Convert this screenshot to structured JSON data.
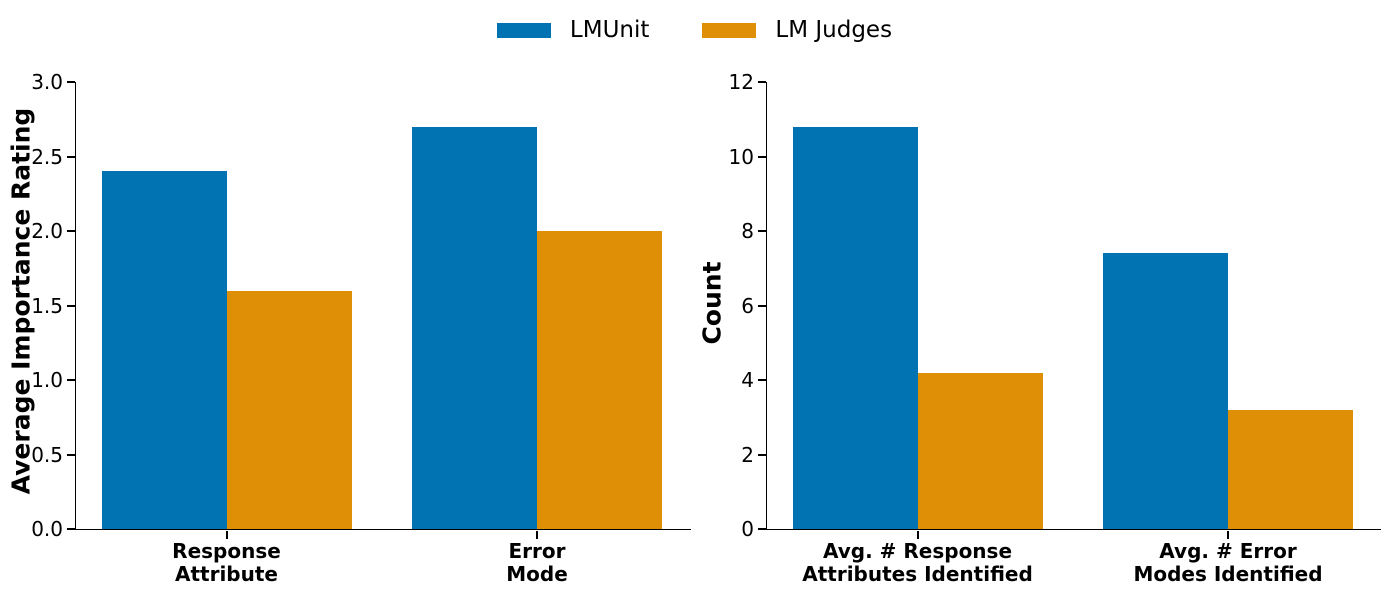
{
  "figure": {
    "background": "#ffffff",
    "legend": {
      "items": [
        {
          "label": "LMUnit",
          "color": "#0173b2"
        },
        {
          "label": "LM Judges",
          "color": "#de8f05"
        }
      ]
    }
  },
  "chart_data": [
    {
      "type": "bar",
      "title": "",
      "ylabel": "Average Importance Rating",
      "xlabel": "",
      "categories": [
        "Response\nAttribute",
        "Error\nMode"
      ],
      "series": [
        {
          "name": "LMUnit",
          "color": "#0173b2",
          "values": [
            2.4,
            2.7
          ]
        },
        {
          "name": "LM Judges",
          "color": "#de8f05",
          "values": [
            1.6,
            2.0
          ]
        }
      ],
      "ylim": [
        0,
        3.0
      ],
      "yticks": [
        0.0,
        0.5,
        1.0,
        1.5,
        2.0,
        2.5,
        3.0
      ],
      "ytick_labels": [
        "0.0",
        "0.5",
        "1.0",
        "1.5",
        "2.0",
        "2.5",
        "3.0"
      ],
      "grid": false,
      "legend_position": "shared, top center, outside axes"
    },
    {
      "type": "bar",
      "title": "",
      "ylabel": "Count",
      "xlabel": "",
      "categories": [
        "Avg. # Response\nAttributes Identified",
        "Avg. # Error\nModes Identified"
      ],
      "series": [
        {
          "name": "LMUnit",
          "color": "#0173b2",
          "values": [
            10.8,
            7.4
          ]
        },
        {
          "name": "LM Judges",
          "color": "#de8f05",
          "values": [
            4.2,
            3.2
          ]
        }
      ],
      "ylim": [
        0,
        12
      ],
      "yticks": [
        0,
        2,
        4,
        6,
        8,
        10,
        12
      ],
      "ytick_labels": [
        "0",
        "2",
        "4",
        "6",
        "8",
        "10",
        "12"
      ],
      "grid": false,
      "legend_position": "shared, top center, outside axes"
    }
  ]
}
